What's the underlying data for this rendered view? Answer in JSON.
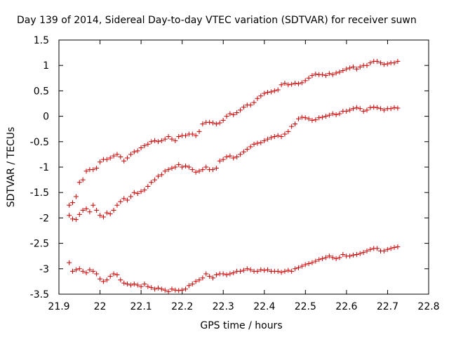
{
  "chart_data": {
    "type": "scatter",
    "title": "Day 139 of 2014, Sidereal Day-to-day VTEC variation (SDTVAR) for receiver suwn",
    "xlabel": "GPS time / hours",
    "ylabel": "SDTVAR / TECUs",
    "xlim": [
      21.9,
      22.8
    ],
    "ylim": [
      -3.5,
      1.5
    ],
    "xticks": [
      21.9,
      22.0,
      22.1,
      22.2,
      22.3,
      22.4,
      22.5,
      22.6,
      22.7,
      22.8
    ],
    "xtick_labels": [
      "21.9",
      "22",
      "22.1",
      "22.2",
      "22.3",
      "22.4",
      "22.5",
      "22.6",
      "22.7",
      "22.8"
    ],
    "yticks": [
      -3.5,
      -3.0,
      -2.5,
      -2.0,
      -1.5,
      -1.0,
      -0.5,
      0.0,
      0.5,
      1.0,
      1.5
    ],
    "ytick_labels": [
      "-3.5",
      "-3",
      "-2.5",
      "-2",
      "-1.5",
      "-1",
      "-0.5",
      "0",
      "0.5",
      "1",
      "1.5"
    ],
    "marker": "+",
    "color": "#cc0000",
    "x_start": 21.925,
    "x_step": 0.00833,
    "series": [
      {
        "name": "series-upper",
        "values": [
          -1.75,
          -1.7,
          -1.58,
          -1.3,
          -1.25,
          -1.08,
          -1.05,
          -1.05,
          -1.02,
          -0.9,
          -0.85,
          -0.85,
          -0.82,
          -0.78,
          -0.75,
          -0.8,
          -0.88,
          -0.82,
          -0.75,
          -0.7,
          -0.68,
          -0.62,
          -0.58,
          -0.55,
          -0.5,
          -0.48,
          -0.5,
          -0.48,
          -0.45,
          -0.4,
          -0.45,
          -0.48,
          -0.4,
          -0.38,
          -0.38,
          -0.35,
          -0.35,
          -0.38,
          -0.3,
          -0.15,
          -0.12,
          -0.12,
          -0.13,
          -0.15,
          -0.13,
          -0.08,
          0.0,
          0.05,
          0.03,
          0.07,
          0.12,
          0.18,
          0.22,
          0.22,
          0.27,
          0.35,
          0.4,
          0.45,
          0.47,
          0.48,
          0.5,
          0.52,
          0.62,
          0.65,
          0.62,
          0.63,
          0.65,
          0.64,
          0.66,
          0.7,
          0.75,
          0.8,
          0.83,
          0.82,
          0.82,
          0.8,
          0.84,
          0.82,
          0.85,
          0.87,
          0.9,
          0.93,
          0.95,
          0.97,
          0.93,
          0.97,
          1.0,
          1.0,
          1.05,
          1.08,
          1.08,
          1.05,
          1.02,
          1.03,
          1.05,
          1.05,
          1.08
        ]
      },
      {
        "name": "series-middle",
        "values": [
          -1.95,
          -2.02,
          -2.03,
          -1.93,
          -1.85,
          -1.82,
          -1.88,
          -1.75,
          -1.85,
          -1.95,
          -1.98,
          -1.9,
          -1.92,
          -1.85,
          -1.75,
          -1.68,
          -1.62,
          -1.65,
          -1.58,
          -1.5,
          -1.52,
          -1.48,
          -1.45,
          -1.38,
          -1.3,
          -1.25,
          -1.18,
          -1.15,
          -1.08,
          -1.05,
          -1.02,
          -1.0,
          -0.95,
          -1.0,
          -0.98,
          -1.0,
          -1.05,
          -1.1,
          -1.08,
          -1.05,
          -1.0,
          -1.05,
          -1.05,
          -1.02,
          -0.88,
          -0.85,
          -0.8,
          -0.78,
          -0.82,
          -0.8,
          -0.75,
          -0.7,
          -0.65,
          -0.6,
          -0.55,
          -0.53,
          -0.52,
          -0.48,
          -0.45,
          -0.42,
          -0.4,
          -0.38,
          -0.4,
          -0.35,
          -0.3,
          -0.2,
          -0.15,
          -0.05,
          -0.02,
          -0.03,
          -0.05,
          -0.08,
          -0.07,
          -0.03,
          -0.02,
          0.0,
          0.02,
          0.05,
          0.03,
          0.05,
          0.1,
          0.1,
          0.12,
          0.15,
          0.17,
          0.15,
          0.1,
          0.12,
          0.17,
          0.18,
          0.17,
          0.15,
          0.12,
          0.15,
          0.15,
          0.17,
          0.16
        ]
      },
      {
        "name": "series-lower",
        "values": [
          -2.88,
          -3.05,
          -3.02,
          -3.0,
          -3.05,
          -3.08,
          -3.02,
          -3.05,
          -3.1,
          -3.2,
          -3.25,
          -3.22,
          -3.15,
          -3.1,
          -3.12,
          -3.22,
          -3.28,
          -3.3,
          -3.32,
          -3.3,
          -3.32,
          -3.35,
          -3.3,
          -3.35,
          -3.37,
          -3.4,
          -3.38,
          -3.4,
          -3.42,
          -3.45,
          -3.4,
          -3.42,
          -3.43,
          -3.42,
          -3.4,
          -3.33,
          -3.3,
          -3.25,
          -3.22,
          -3.18,
          -3.1,
          -3.15,
          -3.18,
          -3.12,
          -3.1,
          -3.1,
          -3.12,
          -3.1,
          -3.08,
          -3.05,
          -3.05,
          -3.03,
          -3.0,
          -3.02,
          -3.05,
          -3.05,
          -3.02,
          -3.03,
          -3.02,
          -3.05,
          -3.05,
          -3.05,
          -3.07,
          -3.05,
          -3.03,
          -3.05,
          -3.0,
          -2.98,
          -2.95,
          -2.92,
          -2.9,
          -2.88,
          -2.85,
          -2.82,
          -2.8,
          -2.78,
          -2.75,
          -2.78,
          -2.8,
          -2.78,
          -2.72,
          -2.75,
          -2.75,
          -2.73,
          -2.72,
          -2.7,
          -2.68,
          -2.65,
          -2.62,
          -2.6,
          -2.6,
          -2.65,
          -2.65,
          -2.62,
          -2.6,
          -2.58,
          -2.57
        ]
      }
    ]
  }
}
